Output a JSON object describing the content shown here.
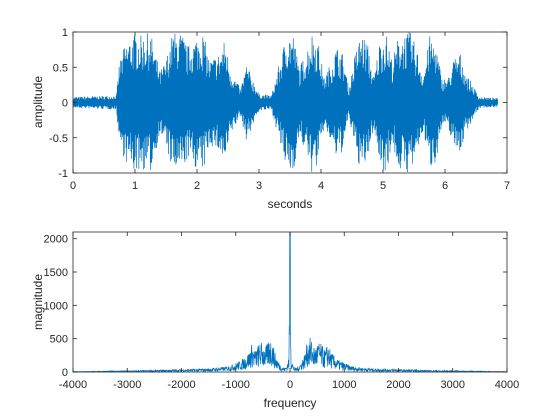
{
  "chart_data": [
    {
      "type": "line",
      "xlabel": "seconds",
      "ylabel": "amplitude",
      "xlim": [
        0,
        7
      ],
      "ylim": [
        -1,
        1
      ],
      "xticks": [
        "0",
        "1",
        "2",
        "3",
        "4",
        "5",
        "6",
        "7"
      ],
      "yticks": [
        "-1",
        "-0.5",
        "0",
        "0.5",
        "1"
      ],
      "grid": false,
      "color": "#0072BD",
      "series": [
        {
          "description": "speech waveform amplitude envelope (time in seconds, peak amplitude)",
          "x": [
            0,
            0.7,
            0.75,
            0.85,
            1.0,
            1.1,
            1.25,
            1.4,
            1.5,
            1.6,
            1.7,
            1.75,
            1.85,
            2.0,
            2.1,
            2.2,
            2.35,
            2.45,
            2.55,
            2.7,
            2.8,
            3.0,
            3.2,
            3.3,
            3.45,
            3.55,
            3.65,
            3.75,
            3.85,
            3.95,
            4.05,
            4.15,
            4.25,
            4.35,
            4.45,
            4.55,
            4.65,
            4.75,
            4.85,
            4.95,
            5.05,
            5.15,
            5.25,
            5.35,
            5.45,
            5.55,
            5.65,
            5.75,
            5.85,
            5.95,
            6.05,
            6.15,
            6.25,
            6.35,
            6.45,
            6.55,
            6.85
          ],
          "envelope": [
            0.08,
            0.1,
            0.6,
            0.85,
            1.0,
            0.95,
            1.0,
            0.45,
            0.6,
            1.0,
            1.0,
            1.0,
            0.8,
            0.95,
            1.0,
            0.6,
            0.7,
            0.9,
            0.45,
            0.2,
            0.55,
            0.12,
            0.1,
            0.45,
            1.0,
            1.0,
            0.5,
            0.7,
            1.0,
            0.9,
            0.35,
            0.55,
            0.8,
            0.7,
            0.2,
            0.7,
            1.0,
            0.85,
            0.35,
            0.9,
            1.0,
            0.6,
            0.95,
            1.0,
            1.0,
            0.75,
            0.4,
            0.95,
            0.85,
            0.35,
            0.35,
            0.65,
            0.7,
            0.4,
            0.25,
            0.08,
            0.06
          ]
        }
      ]
    },
    {
      "type": "line",
      "xlabel": "frequency",
      "ylabel": "magnitude",
      "xlim": [
        -4000,
        4000
      ],
      "ylim": [
        0,
        2100
      ],
      "xticks": [
        "-4000",
        "-3000",
        "-2000",
        "-1000",
        "0",
        "1000",
        "2000",
        "3000",
        "4000"
      ],
      "yticks": [
        "0",
        "500",
        "1000",
        "1500",
        "2000"
      ],
      "grid": false,
      "color": "#0072BD",
      "series": [
        {
          "description": "magnitude spectrum envelope (symmetric about 0 Hz)",
          "x": [
            0,
            20,
            60,
            100,
            160,
            220,
            280,
            320,
            380,
            420,
            460,
            520,
            580,
            640,
            700,
            760,
            820,
            900,
            1000,
            1100,
            1200,
            1400,
            1600,
            1800,
            2000,
            2400,
            2800,
            3200,
            3600,
            4000
          ],
          "envelope": [
            2090,
            250,
            100,
            60,
            90,
            180,
            300,
            480,
            520,
            420,
            380,
            460,
            420,
            330,
            430,
            300,
            240,
            180,
            140,
            100,
            80,
            60,
            50,
            45,
            40,
            30,
            22,
            18,
            12,
            8
          ]
        }
      ]
    }
  ]
}
